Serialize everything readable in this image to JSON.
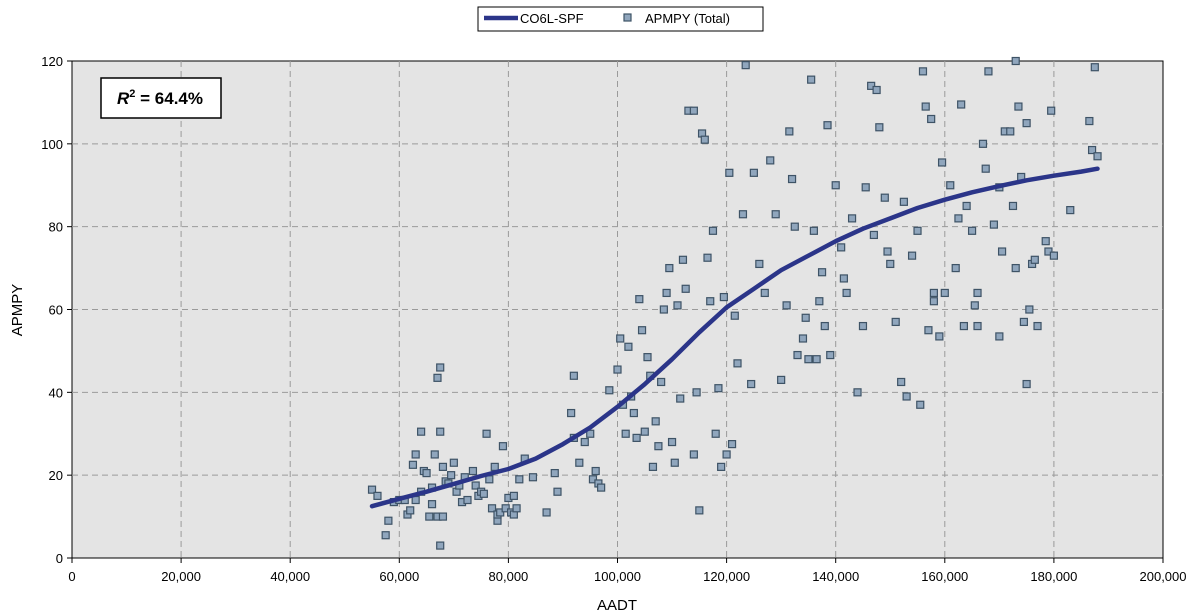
{
  "chart_data": {
    "type": "scatter",
    "xlabel": "AADT",
    "ylabel": "APMPY",
    "xlim": [
      0,
      200000
    ],
    "ylim": [
      0,
      120
    ],
    "x_ticks": [
      0,
      20000,
      40000,
      60000,
      80000,
      100000,
      120000,
      140000,
      160000,
      180000,
      200000
    ],
    "x_tick_labels": [
      "0",
      "20,000",
      "40,000",
      "60,000",
      "80,000",
      "100,000",
      "120,000",
      "140,000",
      "160,000",
      "180,000",
      "200,000"
    ],
    "y_ticks": [
      0,
      20,
      40,
      60,
      80,
      100,
      120
    ],
    "y_tick_labels": [
      "0",
      "20",
      "40",
      "60",
      "80",
      "100",
      "120"
    ],
    "grid": true,
    "legend_position": "top-center",
    "annotation": {
      "r_label": "R",
      "superscript": "2",
      "value_text": " = 64.4%"
    },
    "colors": {
      "plot_bg": "#e4e4e4",
      "line": "#2b3589",
      "marker_fill": "#90a6bd",
      "marker_stroke": "#3e5366"
    },
    "series": [
      {
        "name": "CO6L-SPF",
        "kind": "line",
        "x": [
          55000,
          60000,
          65000,
          70000,
          75000,
          80000,
          85000,
          90000,
          95000,
          100000,
          105000,
          110000,
          115000,
          120000,
          125000,
          130000,
          135000,
          140000,
          145000,
          150000,
          155000,
          160000,
          165000,
          170000,
          175000,
          180000,
          185000,
          188000
        ],
        "y": [
          12.5,
          14.3,
          16.0,
          17.9,
          19.8,
          21.5,
          24.0,
          27.5,
          31.5,
          36.5,
          42.0,
          48.0,
          54.5,
          60.5,
          65.0,
          69.5,
          73.0,
          76.5,
          79.5,
          82.0,
          84.5,
          86.5,
          88.3,
          89.8,
          91.2,
          92.3,
          93.3,
          94.0
        ]
      },
      {
        "name": "APMPY (Total)",
        "kind": "scatter",
        "points": [
          [
            55000,
            16.5
          ],
          [
            56000,
            15
          ],
          [
            57500,
            5.5
          ],
          [
            58000,
            9
          ],
          [
            59000,
            13.5
          ],
          [
            60000,
            14
          ],
          [
            61000,
            14
          ],
          [
            61500,
            10.5
          ],
          [
            62000,
            11.5
          ],
          [
            62500,
            22.5
          ],
          [
            63000,
            25
          ],
          [
            63000,
            14
          ],
          [
            64000,
            16
          ],
          [
            64000,
            30.5
          ],
          [
            64500,
            21
          ],
          [
            65000,
            20.5
          ],
          [
            65500,
            10
          ],
          [
            66000,
            13
          ],
          [
            66000,
            17
          ],
          [
            66500,
            25
          ],
          [
            67000,
            43.5
          ],
          [
            67000,
            10
          ],
          [
            67500,
            46
          ],
          [
            67500,
            30.5
          ],
          [
            67500,
            3
          ],
          [
            68000,
            10
          ],
          [
            68000,
            22
          ],
          [
            68500,
            18.5
          ],
          [
            69000,
            18
          ],
          [
            69500,
            20
          ],
          [
            70000,
            23
          ],
          [
            70500,
            16
          ],
          [
            71000,
            17.5
          ],
          [
            71500,
            13.5
          ],
          [
            72000,
            19.5
          ],
          [
            72500,
            14
          ],
          [
            73500,
            21
          ],
          [
            74000,
            17.5
          ],
          [
            74500,
            15
          ],
          [
            75000,
            16
          ],
          [
            75500,
            15.5
          ],
          [
            76000,
            30
          ],
          [
            76500,
            19
          ],
          [
            77000,
            12
          ],
          [
            77500,
            22
          ],
          [
            78000,
            9
          ],
          [
            78000,
            10.5
          ],
          [
            78500,
            11
          ],
          [
            79000,
            27
          ],
          [
            79500,
            12
          ],
          [
            80000,
            14.5
          ],
          [
            80500,
            11
          ],
          [
            81000,
            10.5
          ],
          [
            81000,
            15
          ],
          [
            81500,
            12
          ],
          [
            82000,
            19
          ],
          [
            83000,
            24
          ],
          [
            84500,
            19.5
          ],
          [
            87000,
            11
          ],
          [
            88500,
            20.5
          ],
          [
            89000,
            16
          ],
          [
            91500,
            35
          ],
          [
            92000,
            44
          ],
          [
            92000,
            29
          ],
          [
            93000,
            23
          ],
          [
            94000,
            28
          ],
          [
            95000,
            30
          ],
          [
            95500,
            19
          ],
          [
            96000,
            21
          ],
          [
            96500,
            18
          ],
          [
            97000,
            17
          ],
          [
            98500,
            40.5
          ],
          [
            100000,
            45.5
          ],
          [
            100500,
            53
          ],
          [
            101000,
            37
          ],
          [
            101500,
            30
          ],
          [
            102000,
            51
          ],
          [
            102500,
            39
          ],
          [
            103000,
            35
          ],
          [
            103500,
            29
          ],
          [
            104000,
            62.5
          ],
          [
            104500,
            55
          ],
          [
            105000,
            30.5
          ],
          [
            105500,
            48.5
          ],
          [
            106000,
            44
          ],
          [
            106500,
            22
          ],
          [
            107000,
            33
          ],
          [
            107500,
            27
          ],
          [
            108000,
            42.5
          ],
          [
            108500,
            60
          ],
          [
            109000,
            64
          ],
          [
            109500,
            70
          ],
          [
            110000,
            28
          ],
          [
            110500,
            23
          ],
          [
            111000,
            61
          ],
          [
            111500,
            38.5
          ],
          [
            112000,
            72
          ],
          [
            112500,
            65
          ],
          [
            113000,
            108
          ],
          [
            114000,
            108
          ],
          [
            114000,
            25
          ],
          [
            114500,
            40
          ],
          [
            115000,
            11.5
          ],
          [
            115500,
            102.5
          ],
          [
            116000,
            101
          ],
          [
            116500,
            72.5
          ],
          [
            117000,
            62
          ],
          [
            117500,
            79
          ],
          [
            118000,
            30
          ],
          [
            118500,
            41
          ],
          [
            119000,
            22
          ],
          [
            119500,
            63
          ],
          [
            120000,
            25
          ],
          [
            120500,
            93
          ],
          [
            121000,
            27.5
          ],
          [
            121500,
            58.5
          ],
          [
            122000,
            47
          ],
          [
            123000,
            83
          ],
          [
            123500,
            119
          ],
          [
            124500,
            42
          ],
          [
            125000,
            93
          ],
          [
            126000,
            71
          ],
          [
            127000,
            64
          ],
          [
            128000,
            96
          ],
          [
            129000,
            83
          ],
          [
            130000,
            43
          ],
          [
            131000,
            61
          ],
          [
            131500,
            103
          ],
          [
            132000,
            91.5
          ],
          [
            132500,
            80
          ],
          [
            133000,
            49
          ],
          [
            134000,
            53
          ],
          [
            134500,
            58
          ],
          [
            135000,
            48
          ],
          [
            135500,
            115.5
          ],
          [
            136000,
            79
          ],
          [
            136500,
            48
          ],
          [
            137000,
            62
          ],
          [
            137500,
            69
          ],
          [
            138000,
            56
          ],
          [
            138500,
            104.5
          ],
          [
            139000,
            49
          ],
          [
            140000,
            90
          ],
          [
            141000,
            75
          ],
          [
            141500,
            67.5
          ],
          [
            142000,
            64
          ],
          [
            143000,
            82
          ],
          [
            144000,
            40
          ],
          [
            145000,
            56
          ],
          [
            145500,
            89.5
          ],
          [
            146500,
            114
          ],
          [
            147000,
            78
          ],
          [
            147500,
            113
          ],
          [
            148000,
            104
          ],
          [
            149000,
            87
          ],
          [
            149500,
            74
          ],
          [
            150000,
            71
          ],
          [
            151000,
            57
          ],
          [
            152000,
            42.5
          ],
          [
            152500,
            86
          ],
          [
            153000,
            39
          ],
          [
            154000,
            73
          ],
          [
            155000,
            79
          ],
          [
            155500,
            37
          ],
          [
            156000,
            117.5
          ],
          [
            156500,
            109
          ],
          [
            157000,
            55
          ],
          [
            157500,
            106
          ],
          [
            158000,
            64
          ],
          [
            158000,
            62
          ],
          [
            159000,
            53.5
          ],
          [
            159500,
            95.5
          ],
          [
            160000,
            64
          ],
          [
            161000,
            90
          ],
          [
            162000,
            70
          ],
          [
            162500,
            82
          ],
          [
            163000,
            109.5
          ],
          [
            163500,
            56
          ],
          [
            164000,
            85
          ],
          [
            165000,
            79
          ],
          [
            165500,
            61
          ],
          [
            166000,
            64
          ],
          [
            166000,
            56
          ],
          [
            167000,
            100
          ],
          [
            167500,
            94
          ],
          [
            168000,
            117.5
          ],
          [
            169000,
            80.5
          ],
          [
            170000,
            53.5
          ],
          [
            170000,
            89.5
          ],
          [
            170500,
            74
          ],
          [
            171000,
            103
          ],
          [
            172000,
            103
          ],
          [
            172500,
            85
          ],
          [
            173000,
            120
          ],
          [
            173000,
            70
          ],
          [
            173500,
            109
          ],
          [
            174000,
            92
          ],
          [
            174500,
            57
          ],
          [
            175000,
            105
          ],
          [
            175000,
            42
          ],
          [
            175500,
            60
          ],
          [
            176000,
            71
          ],
          [
            176500,
            72
          ],
          [
            177000,
            56
          ],
          [
            178500,
            76.5
          ],
          [
            179000,
            74
          ],
          [
            179500,
            108
          ],
          [
            180000,
            73
          ],
          [
            183000,
            84
          ],
          [
            186500,
            105.5
          ],
          [
            187000,
            98.5
          ],
          [
            187500,
            118.5
          ],
          [
            188000,
            97
          ]
        ]
      }
    ]
  }
}
